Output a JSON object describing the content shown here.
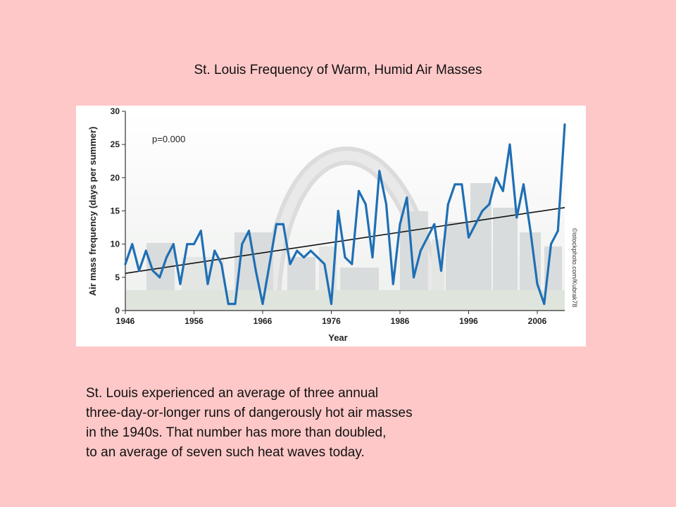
{
  "slide": {
    "title": "St. Louis Frequency of Warm, Humid Air Masses",
    "caption_lines": [
      "St. Louis experienced an average of three annual",
      "three-day-or-longer runs of dangerously hot air masses",
      "in the 1940s. That number has more than doubled,",
      "to an average of seven such heat waves today."
    ]
  },
  "chart_data": {
    "type": "line",
    "xlabel": "Year",
    "ylabel": "Air mass frequency (days per summer)",
    "annotation": "p=0.000",
    "credit": "©istockphoto.com/Kubrak78",
    "xlim": [
      1946,
      2010
    ],
    "ylim": [
      0,
      30
    ],
    "x_ticks": [
      1946,
      1956,
      1966,
      1976,
      1986,
      1996,
      2006
    ],
    "y_ticks": [
      0,
      5,
      10,
      15,
      20,
      25,
      30
    ],
    "grid": false,
    "colors": {
      "series": "#1f6fb5",
      "trend": "#111111"
    },
    "series": [
      {
        "x": [
          1946,
          1947,
          1948,
          1949,
          1950,
          1951,
          1952,
          1953,
          1954,
          1955,
          1956,
          1957,
          1958,
          1959,
          1960,
          1961,
          1962,
          1963,
          1964,
          1965,
          1966,
          1967,
          1968,
          1969,
          1970,
          1971,
          1972,
          1973,
          1974,
          1975,
          1976,
          1977,
          1978,
          1979,
          1980,
          1981,
          1982,
          1983,
          1984,
          1985,
          1986,
          1987,
          1988,
          1989,
          1990,
          1991,
          1992,
          1993,
          1994,
          1995,
          1996,
          1997,
          1998,
          1999,
          2000,
          2001,
          2002,
          2003,
          2004,
          2005,
          2006,
          2007,
          2008,
          2009,
          2010
        ],
        "y": [
          7,
          10,
          6,
          9,
          6,
          5,
          8,
          10,
          4,
          10,
          10,
          12,
          4,
          9,
          7,
          1,
          1,
          10,
          12,
          6,
          1,
          7,
          13,
          13,
          7,
          9,
          8,
          9,
          8,
          7,
          1,
          15,
          8,
          7,
          18,
          16,
          8,
          21,
          16,
          4,
          13,
          17,
          5,
          9,
          11,
          13,
          6,
          16,
          19,
          19,
          11,
          13,
          15,
          16,
          20,
          18,
          25,
          14,
          19,
          12,
          4,
          1,
          10,
          12,
          28
        ]
      }
    ],
    "trend": {
      "x": [
        1946,
        2010
      ],
      "y": [
        5.6,
        15.5
      ]
    }
  }
}
